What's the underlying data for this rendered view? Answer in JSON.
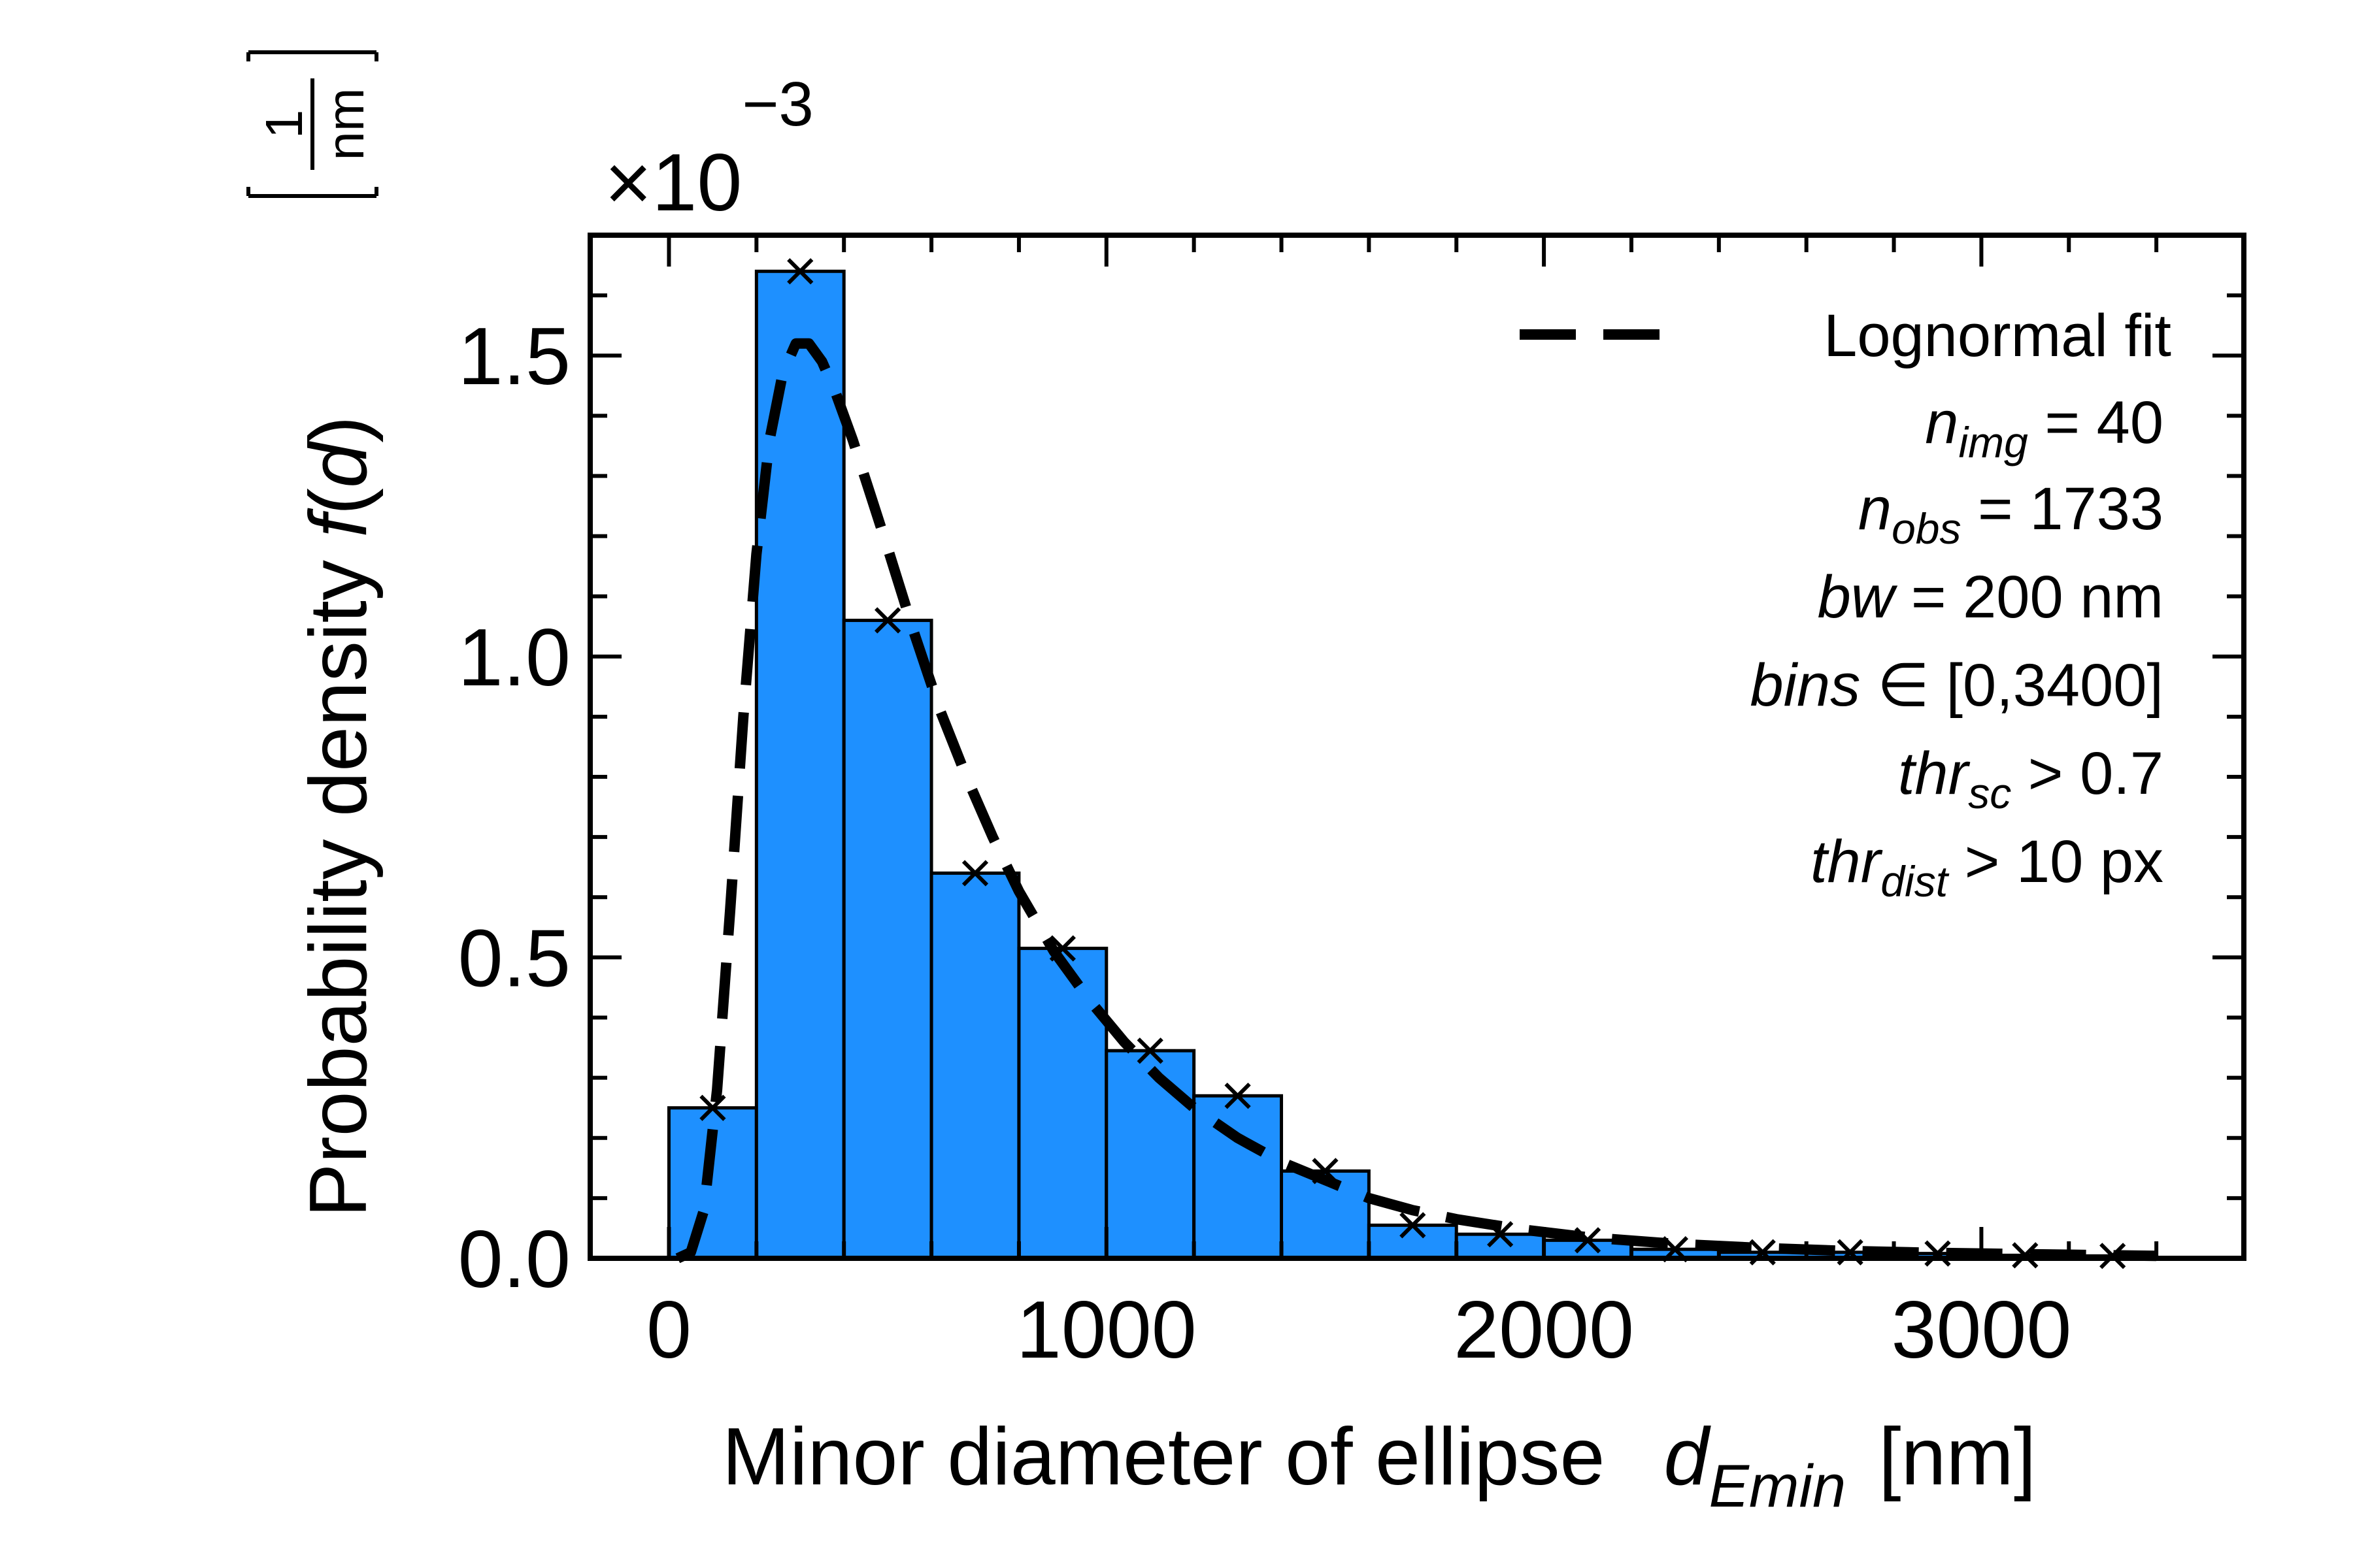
{
  "chart_data": {
    "type": "bar",
    "title": "",
    "xlabel": {
      "prefix": "Minor diameter of ellipse",
      "symbol": "d",
      "subscript": "Emin",
      "unit": "[nm]"
    },
    "ylabel": {
      "prefix": "Probability density ",
      "symbol": "f",
      "open": "(",
      "arg": "d",
      "close": ")",
      "unit_numerator": "1",
      "unit_denominator": "nm"
    },
    "y_multiplier": {
      "base": "×10",
      "exponent": "−3"
    },
    "xlim": [
      -180,
      3600
    ],
    "ylim": [
      0,
      1.7
    ],
    "xticks": [
      0,
      1000,
      2000,
      3000
    ],
    "xtick_labels": [
      "0",
      "1000",
      "2000",
      "3000"
    ],
    "yticks": [
      0.0,
      0.5,
      1.0,
      1.5
    ],
    "ytick_labels": [
      "0.0",
      "0.5",
      "1.0",
      "1.5"
    ],
    "bin_width": 200,
    "bin_edges": [
      0,
      200,
      400,
      600,
      800,
      1000,
      1200,
      1400,
      1600,
      1800,
      2000,
      2200,
      2400,
      2600,
      2800,
      3000,
      3200,
      3400
    ],
    "bar_values": [
      0.25,
      1.64,
      1.06,
      0.64,
      0.515,
      0.345,
      0.27,
      0.145,
      0.055,
      0.04,
      0.03,
      0.015,
      0.01,
      0.01,
      0.008,
      0.005,
      0.004
    ],
    "marker_points": {
      "x": [
        100,
        300,
        500,
        700,
        900,
        1100,
        1300,
        1500,
        1700,
        1900,
        2100,
        2300,
        2500,
        2700,
        2900,
        3100,
        3300
      ],
      "y": [
        0.25,
        1.64,
        1.06,
        0.64,
        0.515,
        0.345,
        0.27,
        0.145,
        0.055,
        0.04,
        0.03,
        0.015,
        0.01,
        0.01,
        0.008,
        0.005,
        0.004
      ]
    },
    "lognormal_fit": {
      "label": "Lognormal fit",
      "x": [
        20,
        50,
        80,
        110,
        140,
        170,
        200,
        230,
        260,
        290,
        320,
        350,
        380,
        420,
        460,
        500,
        560,
        620,
        680,
        740,
        800,
        880,
        960,
        1040,
        1120,
        1200,
        1300,
        1400,
        1500,
        1600,
        1700,
        1800,
        1950,
        2100,
        2300,
        2500,
        2700,
        2900,
        3100,
        3300,
        3400
      ],
      "y": [
        0.0,
        0.01,
        0.08,
        0.28,
        0.58,
        0.9,
        1.17,
        1.36,
        1.47,
        1.52,
        1.52,
        1.49,
        1.44,
        1.36,
        1.27,
        1.18,
        1.04,
        0.91,
        0.8,
        0.7,
        0.61,
        0.51,
        0.43,
        0.36,
        0.3,
        0.25,
        0.2,
        0.16,
        0.13,
        0.1,
        0.08,
        0.065,
        0.048,
        0.035,
        0.024,
        0.017,
        0.012,
        0.009,
        0.007,
        0.005,
        0.004
      ]
    },
    "bar_color": "#1e90ff",
    "bar_edge_color": "#000000",
    "fit_color": "#000000",
    "legend_position": "top-right",
    "grid": false
  },
  "annotations": [
    {
      "sym": "n",
      "sub": "img",
      "rest": " = 40"
    },
    {
      "sym": "n",
      "sub": "obs",
      "rest": " = 1733"
    },
    {
      "sym": "bw",
      "sub": "",
      "rest": " = 200 nm"
    },
    {
      "sym": "bins",
      "sub": "",
      "rest": " ∈ [0,3400]"
    },
    {
      "sym": "thr",
      "sub": "sc",
      "rest": " >  0.7"
    },
    {
      "sym": "thr",
      "sub": "dist",
      "rest": " > 10 px"
    }
  ]
}
